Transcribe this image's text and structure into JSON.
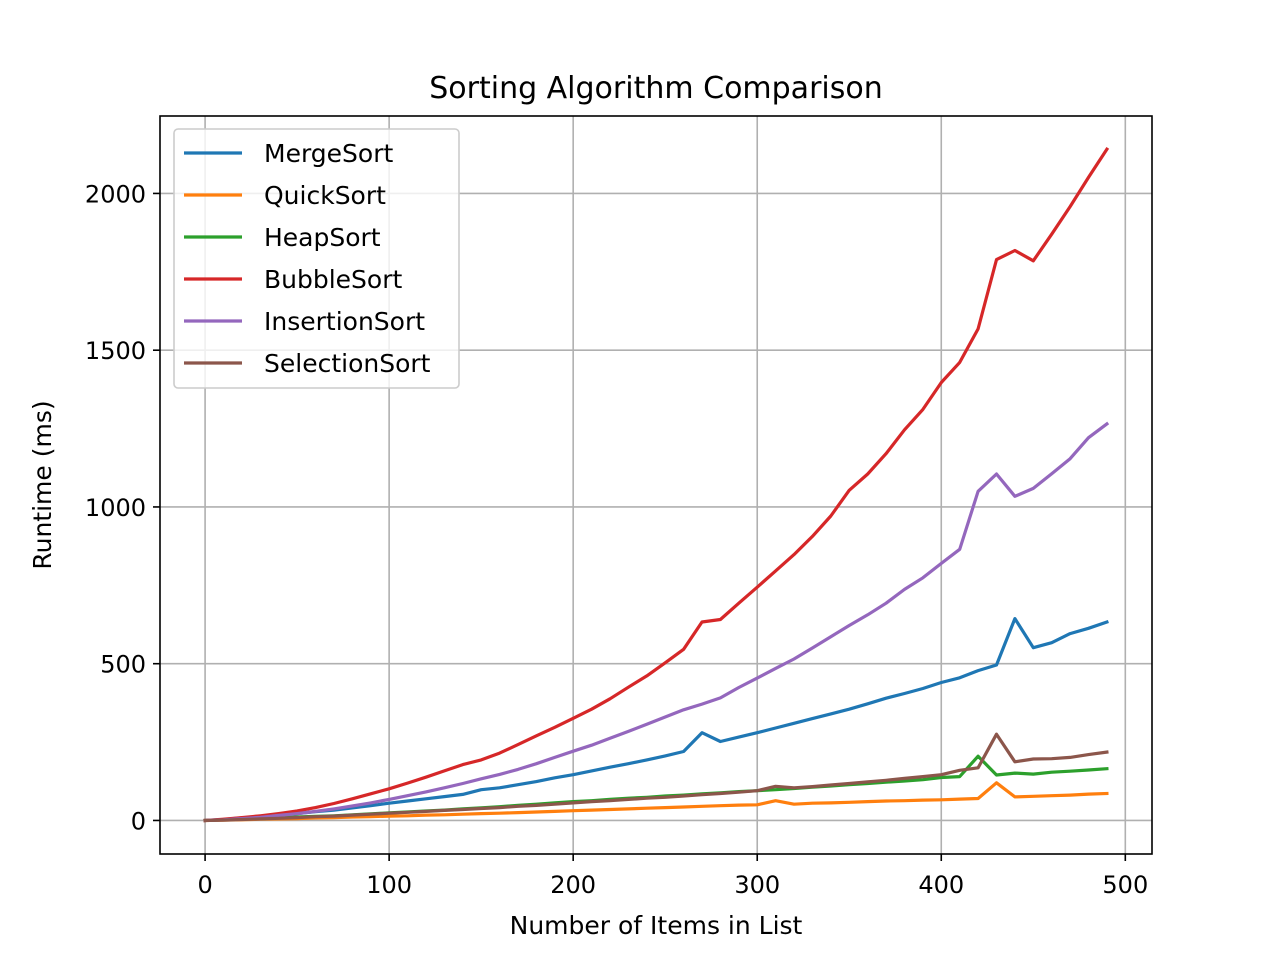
{
  "chart_data": {
    "type": "line",
    "title": "Sorting Algorithm Comparison",
    "xlabel": "Number of Items in List",
    "ylabel": "Runtime (ms)",
    "xlim": [
      -24.5,
      514.5
    ],
    "ylim": [
      -107,
      2247
    ],
    "xticks": [
      0,
      100,
      200,
      300,
      400,
      500
    ],
    "yticks": [
      0,
      500,
      1000,
      1500,
      2000
    ],
    "xtick_labels": [
      "0",
      "100",
      "200",
      "300",
      "400",
      "500"
    ],
    "ytick_labels": [
      "0",
      "500",
      "1000",
      "1500",
      "2000"
    ],
    "grid": true,
    "legend_position": "top-left",
    "x": [
      0,
      10,
      20,
      30,
      40,
      50,
      60,
      70,
      80,
      90,
      100,
      110,
      120,
      130,
      140,
      150,
      160,
      170,
      180,
      190,
      200,
      210,
      220,
      230,
      240,
      250,
      260,
      270,
      280,
      290,
      300,
      310,
      320,
      330,
      340,
      350,
      360,
      370,
      380,
      390,
      400,
      410,
      420,
      430,
      440,
      450,
      460,
      470,
      480,
      490
    ],
    "series": [
      {
        "name": "MergeSort",
        "color": "#1f77b4",
        "values": [
          0,
          3,
          8,
          12,
          17,
          22,
          28,
          33,
          40,
          47,
          55,
          62,
          69,
          76,
          83,
          98,
          104,
          114,
          124,
          136,
          146,
          158,
          170,
          181,
          193,
          206,
          220,
          280,
          252,
          266,
          280,
          295,
          310,
          325,
          340,
          355,
          372,
          390,
          405,
          421,
          440,
          455,
          478,
          496,
          644,
          551,
          567,
          596,
          613,
          633
        ]
      },
      {
        "name": "QuickSort",
        "color": "#ff7f0e",
        "values": [
          0,
          1,
          2,
          4,
          5,
          6,
          8,
          9,
          11,
          12,
          14,
          15,
          17,
          18,
          20,
          22,
          23,
          25,
          27,
          29,
          31,
          33,
          35,
          37,
          39,
          41,
          43,
          45,
          47,
          49,
          50,
          63,
          52,
          55,
          56,
          58,
          60,
          62,
          63,
          65,
          66,
          68,
          70,
          120,
          75,
          77,
          79,
          81,
          84,
          86
        ]
      },
      {
        "name": "HeapSort",
        "color": "#2ca02c",
        "values": [
          0,
          2,
          4,
          6,
          8,
          11,
          13,
          15,
          18,
          21,
          24,
          27,
          30,
          33,
          37,
          40,
          44,
          48,
          52,
          56,
          60,
          63,
          67,
          71,
          74,
          78,
          81,
          85,
          88,
          92,
          95,
          98,
          102,
          106,
          110,
          114,
          118,
          122,
          126,
          130,
          137,
          140,
          205,
          145,
          151,
          148,
          154,
          157,
          161,
          165
        ]
      },
      {
        "name": "BubbleSort",
        "color": "#d62728",
        "values": [
          0,
          4,
          9,
          15,
          22,
          30,
          41,
          54,
          69,
          85,
          101,
          119,
          138,
          158,
          178,
          193,
          215,
          242,
          270,
          297,
          326,
          355,
          388,
          425,
          461,
          503,
          546,
          633,
          641,
          693,
          744,
          796,
          848,
          906,
          971,
          1053,
          1105,
          1170,
          1246,
          1311,
          1397,
          1461,
          1568,
          1789,
          1818,
          1785,
          1870,
          1958,
          2051,
          2141
        ]
      },
      {
        "name": "InsertionSort",
        "color": "#9467bd",
        "values": [
          0,
          2,
          6,
          10,
          16,
          22,
          29,
          37,
          46,
          56,
          67,
          79,
          91,
          104,
          118,
          133,
          147,
          163,
          181,
          201,
          221,
          240,
          262,
          284,
          307,
          330,
          353,
          371,
          391,
          424,
          454,
          485,
          515,
          550,
          586,
          622,
          656,
          693,
          737,
          774,
          820,
          865,
          1050,
          1105,
          1034,
          1059,
          1106,
          1154,
          1221,
          1265
        ]
      },
      {
        "name": "SelectionSort",
        "color": "#8c564b",
        "values": [
          0,
          1,
          3,
          5,
          7,
          9,
          12,
          14,
          17,
          20,
          23,
          26,
          29,
          32,
          35,
          38,
          41,
          45,
          48,
          52,
          56,
          60,
          63,
          67,
          71,
          74,
          78,
          82,
          86,
          90,
          95,
          109,
          104,
          108,
          113,
          118,
          123,
          128,
          134,
          140,
          146,
          160,
          168,
          275,
          187,
          196,
          197,
          201,
          210,
          218
        ]
      }
    ]
  }
}
